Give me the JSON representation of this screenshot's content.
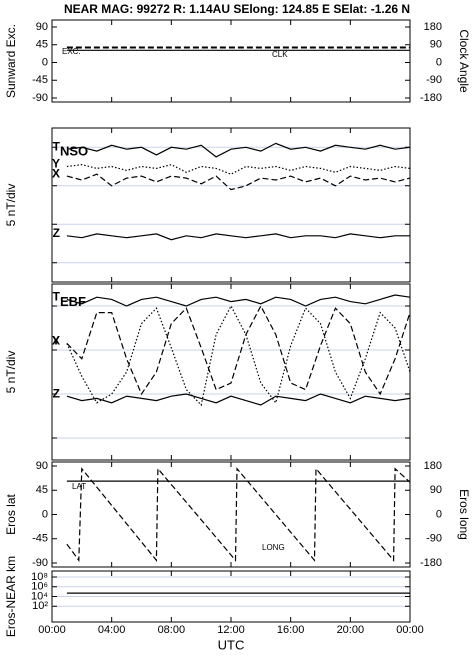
{
  "chart_data": [
    {
      "type": "line",
      "title": "NEAR MAG: 99272  R: 1.14AU  SElong: 124.85 E  SElat:  -1.26 N",
      "ylabel": "Sunward Exc.",
      "y2label": "Clock Angle",
      "xlim": [
        0,
        24
      ],
      "ylim": [
        -90,
        90
      ],
      "yticks": [
        -90,
        -45,
        0,
        45,
        90
      ],
      "y2lim": [
        -180,
        180
      ],
      "y2ticks": [
        -180,
        -90,
        0,
        90,
        180
      ],
      "grid": false,
      "x": [
        1,
        24
      ],
      "series": [
        {
          "name": "EXC.",
          "color": "#000000",
          "dash": "dashed",
          "values": [
            38,
            38
          ]
        },
        {
          "name": "CLK",
          "color": "#000000",
          "dash": "solid",
          "axis": "y2",
          "values": [
            62,
            62
          ]
        }
      ]
    },
    {
      "type": "line",
      "panel_title": "NSO",
      "ylabel": "5 nT/div",
      "xlim": [
        0,
        24
      ],
      "ylim": [
        0,
        8
      ],
      "yticks": [
        1,
        3,
        5,
        7
      ],
      "tick_labels": false,
      "grid": true,
      "x": [
        1,
        2,
        3,
        4,
        5,
        6,
        7,
        8,
        9,
        10,
        11,
        12,
        13,
        14,
        15,
        16,
        17,
        18,
        19,
        20,
        21,
        22,
        23,
        24
      ],
      "series": [
        {
          "name": "T",
          "color": "#000000",
          "dash": "solid",
          "values": [
            6.9,
            7.0,
            6.8,
            7.1,
            6.9,
            7.0,
            6.6,
            7.0,
            6.9,
            7.1,
            6.5,
            6.9,
            7.0,
            6.8,
            7.2,
            6.9,
            7.0,
            6.8,
            7.1,
            7.0,
            6.9,
            7.1,
            6.9,
            7.0
          ]
        },
        {
          "name": "Y",
          "color": "#000000",
          "dash": "dotted",
          "values": [
            6.0,
            6.1,
            5.9,
            6.0,
            5.8,
            6.0,
            5.9,
            6.1,
            5.7,
            6.0,
            5.9,
            5.6,
            6.0,
            5.9,
            6.0,
            5.8,
            6.0,
            5.9,
            5.7,
            6.0,
            5.9,
            5.8,
            6.0,
            5.9
          ]
        },
        {
          "name": "X",
          "color": "#000000",
          "dash": "dashed",
          "values": [
            5.5,
            5.3,
            5.6,
            5.0,
            5.4,
            5.5,
            5.2,
            5.5,
            5.4,
            5.1,
            5.5,
            4.8,
            5.0,
            5.4,
            5.3,
            5.5,
            5.2,
            5.4,
            5.0,
            5.5,
            5.3,
            5.4,
            5.2,
            5.4
          ]
        },
        {
          "name": "Z",
          "color": "#000000",
          "dash": "solid",
          "values": [
            2.4,
            2.3,
            2.5,
            2.4,
            2.3,
            2.4,
            2.5,
            2.2,
            2.4,
            2.3,
            2.5,
            2.4,
            2.3,
            2.4,
            2.5,
            2.3,
            2.4,
            2.4,
            2.3,
            2.5,
            2.4,
            2.3,
            2.4,
            2.4
          ]
        }
      ]
    },
    {
      "type": "line",
      "panel_title": "EBF",
      "ylabel": "5 nT/div",
      "xlim": [
        0,
        24
      ],
      "ylim": [
        0,
        8
      ],
      "yticks": [
        1,
        3,
        5,
        7
      ],
      "tick_labels": false,
      "grid": true,
      "x": [
        1,
        2,
        3,
        4,
        5,
        6,
        7,
        8,
        9,
        10,
        11,
        12,
        13,
        14,
        15,
        16,
        17,
        18,
        19,
        20,
        21,
        22,
        23,
        24
      ],
      "series": [
        {
          "name": "T",
          "color": "#000000",
          "dash": "solid",
          "values": [
            7.3,
            7.1,
            7.4,
            7.3,
            7.0,
            7.3,
            7.4,
            7.2,
            7.0,
            7.3,
            7.4,
            7.2,
            7.3,
            7.1,
            7.4,
            7.3,
            7.0,
            7.3,
            7.4,
            7.2,
            7.1,
            7.3,
            7.5,
            7.4
          ]
        },
        {
          "name": "Y",
          "color": "#000000",
          "dash": "dashed",
          "values": [
            5.3,
            4.6,
            6.7,
            6.7,
            4.6,
            3.0,
            4.0,
            6.2,
            6.9,
            5.1,
            3.2,
            3.5,
            5.7,
            7.0,
            5.7,
            3.5,
            3.2,
            5.2,
            6.9,
            6.2,
            4.0,
            3.0,
            4.6,
            6.7
          ]
        },
        {
          "name": "X",
          "color": "#000000",
          "dash": "dotted",
          "values": [
            5.3,
            3.8,
            2.6,
            3.0,
            4.0,
            6.2,
            6.9,
            5.1,
            3.2,
            2.5,
            5.7,
            7.0,
            5.7,
            3.5,
            2.6,
            5.2,
            6.9,
            6.2,
            4.0,
            2.8,
            4.6,
            6.7,
            6.0,
            4.0
          ]
        },
        {
          "name": "Z",
          "color": "#000000",
          "dash": "solid",
          "values": [
            2.9,
            2.7,
            2.8,
            2.6,
            2.9,
            2.8,
            2.7,
            2.9,
            3.0,
            2.8,
            2.6,
            2.9,
            2.7,
            2.5,
            2.9,
            2.8,
            2.7,
            3.0,
            2.8,
            2.6,
            2.9,
            2.8,
            2.7,
            2.8
          ]
        }
      ]
    },
    {
      "type": "line",
      "ylabel": "Eros lat",
      "y2label": "Eros long",
      "xlim": [
        0,
        24
      ],
      "ylim": [
        -90,
        90
      ],
      "yticks": [
        -90,
        -45,
        0,
        45,
        90
      ],
      "y2lim": [
        -180,
        180
      ],
      "y2ticks": [
        -180,
        -90,
        0,
        90,
        180
      ],
      "grid": false,
      "x": [
        1.0,
        1.8,
        2.0,
        7.0,
        7.1,
        12.3,
        12.4,
        17.6,
        17.7,
        22.9,
        23.0,
        24.0
      ],
      "series": [
        {
          "name": "LAT",
          "color": "#000000",
          "dash": "solid",
          "values": [
            62,
            62,
            62,
            62,
            62,
            62,
            62,
            62,
            62,
            62,
            62,
            62
          ]
        },
        {
          "name": "LONG",
          "color": "#000000",
          "dash": "dashed",
          "axis": "y2",
          "values": [
            -110,
            -170,
            170,
            -170,
            170,
            -170,
            170,
            -170,
            170,
            -170,
            170,
            120
          ]
        }
      ]
    },
    {
      "type": "line",
      "ylabel": "Eros-NEAR km",
      "xlabel": "UTC",
      "log": true,
      "xlim": [
        0,
        24
      ],
      "ylim": [
        1,
        100000000
      ],
      "yticks": [
        {
          "value": 100,
          "label": "10²"
        },
        {
          "value": 10000,
          "label": "10⁴"
        },
        {
          "value": 1000000,
          "label": "10⁶"
        },
        {
          "value": 100000000,
          "label": "10⁸"
        }
      ],
      "grid": true,
      "xticks": [
        {
          "value": 0,
          "label": "00:00"
        },
        {
          "value": 4,
          "label": "04:00"
        },
        {
          "value": 8,
          "label": "08:00"
        },
        {
          "value": 12,
          "label": "12:00"
        },
        {
          "value": 16,
          "label": "16:00"
        },
        {
          "value": 20,
          "label": "20:00"
        },
        {
          "value": 24,
          "label": "00:00"
        }
      ],
      "x": [
        1,
        24
      ],
      "series": [
        {
          "name": "",
          "color": "#000000",
          "dash": "solid",
          "values": [
            50000,
            50000
          ]
        }
      ]
    }
  ]
}
